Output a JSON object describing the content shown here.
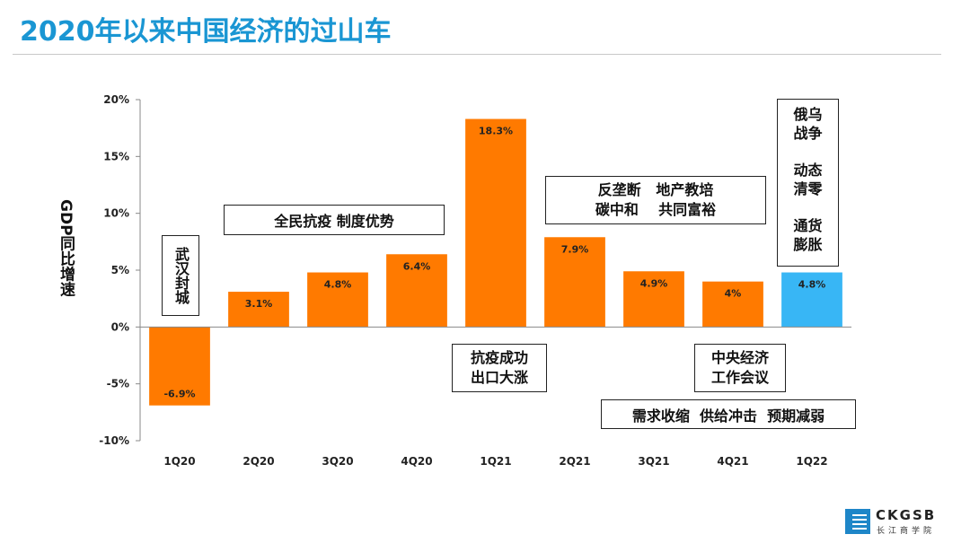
{
  "page": {
    "title": "2020年以来中国经济的过山车"
  },
  "chart_data": {
    "type": "bar",
    "title": "",
    "ylabel": "GDP同比增速",
    "xlabel": "",
    "ylim": [
      -10,
      20
    ],
    "yticks": [
      -10,
      -5,
      0,
      5,
      10,
      15,
      20
    ],
    "ytick_labels": [
      "-10%",
      "-5%",
      "0%",
      "5%",
      "10%",
      "15%",
      "20%"
    ],
    "categories": [
      "1Q20",
      "2Q20",
      "3Q20",
      "4Q20",
      "1Q21",
      "2Q21",
      "3Q21",
      "4Q21",
      "1Q22"
    ],
    "values": [
      -6.9,
      3.1,
      4.8,
      6.4,
      18.3,
      7.9,
      4.9,
      4.0,
      4.8
    ],
    "value_labels": [
      "-6.9%",
      "3.1%",
      "4.8%",
      "6.4%",
      "18.3%",
      "7.9%",
      "4.9%",
      "4%",
      "4.8%"
    ],
    "bar_colors": [
      "#ff7a00",
      "#ff7a00",
      "#ff7a00",
      "#ff7a00",
      "#ff7a00",
      "#ff7a00",
      "#ff7a00",
      "#ff7a00",
      "#38b6f5"
    ],
    "grid": false
  },
  "annotations": {
    "wuhan": "武汉封城",
    "quanmin": "全民抗疫  制度优势",
    "kangyi_line1": "抗疫成功",
    "kangyi_line2": "出口大涨",
    "fanlong_line1": "反垄断   地产教培",
    "fanlong_line2": "碳中和    共同富裕",
    "zhongyang_line1": "中央经济",
    "zhongyang_line2": "工作会议",
    "xuqiu": "需求收缩  供给冲击  预期减弱",
    "ewu_line1": "俄乌",
    "ewu_line2": "战争",
    "dongtai_line1": "动态",
    "dongtai_line2": "清零",
    "tonghuo_line1": "通货",
    "tonghuo_line2": "膨胀"
  },
  "logo": {
    "en": "CKGSB",
    "cn": "长江商学院"
  },
  "colors": {
    "title": "#1a96d3",
    "bar": "#ff7a00",
    "bar_highlight": "#38b6f5"
  }
}
